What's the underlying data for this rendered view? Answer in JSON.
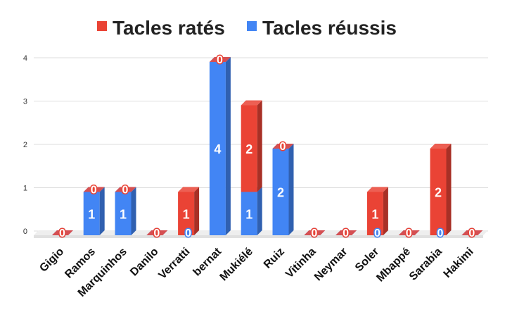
{
  "chart_data": {
    "type": "bar",
    "stacked": true,
    "style": "3d",
    "categories": [
      "Gigio",
      "Ramos",
      "Marquinhos",
      "Danilo",
      "Verratti",
      "bernat",
      "Mukiélé",
      "Ruiz",
      "Vitinha",
      "Neymar",
      "Soler",
      "Mbappé",
      "Sarabia",
      "Hakimi"
    ],
    "series": [
      {
        "name": "Tacles ratés",
        "color": "#ea4335",
        "values": [
          0,
          0,
          0,
          0,
          1,
          0,
          2,
          0,
          0,
          0,
          1,
          0,
          2,
          0
        ]
      },
      {
        "name": "Tacles réussis",
        "color": "#4285f4",
        "values": [
          0,
          1,
          1,
          0,
          0,
          4,
          1,
          2,
          0,
          0,
          0,
          0,
          0,
          0
        ]
      }
    ],
    "yticks": [
      "0",
      "1",
      "2",
      "3",
      "4"
    ],
    "ylim": [
      0,
      4
    ],
    "grid": true,
    "legend": "top-center",
    "title": "",
    "xlabel": "",
    "ylabel": ""
  }
}
